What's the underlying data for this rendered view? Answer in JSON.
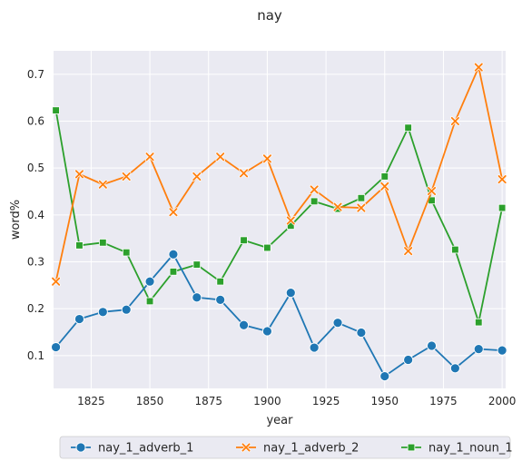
{
  "chart_data": {
    "type": "line",
    "title": "nay",
    "xlabel": "year",
    "ylabel": "word%",
    "xlim": [
      1809,
      2001.5
    ],
    "ylim": [
      0.03,
      0.75
    ],
    "xticks": [
      1825,
      1850,
      1875,
      1900,
      1925,
      1950,
      1975,
      2000
    ],
    "yticks": [
      0.1,
      0.2,
      0.3,
      0.4,
      0.5,
      0.6,
      0.7
    ],
    "grid": true,
    "legend_position": "bottom-center",
    "x": [
      1810,
      1820,
      1830,
      1840,
      1850,
      1860,
      1870,
      1880,
      1890,
      1900,
      1910,
      1920,
      1930,
      1940,
      1950,
      1960,
      1970,
      1980,
      1990,
      2000
    ],
    "series": [
      {
        "name": "nay_1_adverb_1",
        "color": "#1f77b4",
        "marker": "circle",
        "values": [
          0.118,
          0.178,
          0.193,
          0.198,
          0.258,
          0.316,
          0.224,
          0.219,
          0.165,
          0.152,
          0.234,
          0.117,
          0.17,
          0.149,
          0.056,
          0.091,
          0.121,
          0.073,
          0.114,
          0.111
        ]
      },
      {
        "name": "nay_1_adverb_2",
        "color": "#ff7f0e",
        "marker": "x",
        "values": [
          0.258,
          0.487,
          0.465,
          0.482,
          0.524,
          0.406,
          0.482,
          0.524,
          0.489,
          0.52,
          0.388,
          0.454,
          0.417,
          0.415,
          0.461,
          0.323,
          0.451,
          0.6,
          0.715,
          0.476
        ]
      },
      {
        "name": "nay_1_noun_1",
        "color": "#2ca02c",
        "marker": "square",
        "values": [
          0.623,
          0.335,
          0.341,
          0.32,
          0.216,
          0.279,
          0.294,
          0.258,
          0.346,
          0.33,
          0.377,
          0.429,
          0.413,
          0.436,
          0.482,
          0.586,
          0.431,
          0.326,
          0.171,
          0.415
        ]
      }
    ]
  }
}
